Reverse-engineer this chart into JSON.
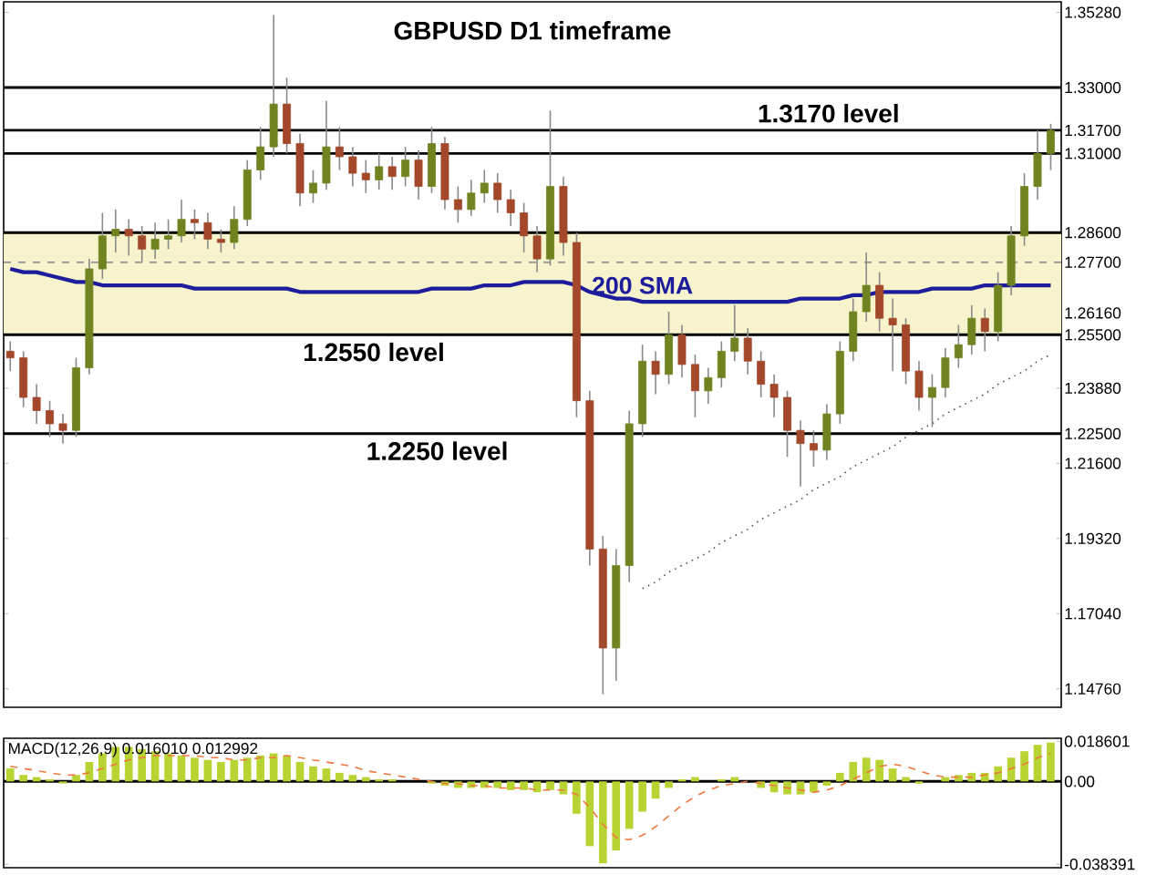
{
  "chart_data": [
    {
      "type": "candlestick",
      "title": "GBPUSD D1 timeframe",
      "categories": [
        null,
        null,
        null,
        null,
        null,
        null,
        null,
        null,
        null,
        null,
        null,
        null,
        null,
        null,
        null,
        null,
        null,
        null,
        null,
        null,
        null,
        null,
        null,
        null,
        null,
        null,
        null,
        null,
        null,
        null,
        null,
        null,
        null,
        null,
        null,
        null,
        null,
        null,
        null,
        null,
        null,
        null,
        null,
        null,
        null,
        null,
        null,
        null,
        null,
        null,
        null,
        null,
        null,
        null,
        null,
        null,
        null,
        null,
        null,
        null,
        null,
        null,
        null,
        null,
        null,
        null,
        null,
        null,
        null,
        null,
        null,
        null,
        null,
        null,
        null,
        null,
        null,
        null,
        null,
        null
      ],
      "ohlc": [
        [
          1.25,
          1.253,
          1.244,
          1.248
        ],
        [
          1.248,
          1.25,
          1.233,
          1.236
        ],
        [
          1.236,
          1.24,
          1.228,
          1.232
        ],
        [
          1.232,
          1.235,
          1.224,
          1.228
        ],
        [
          1.228,
          1.231,
          1.222,
          1.226
        ],
        [
          1.226,
          1.248,
          1.224,
          1.245
        ],
        [
          1.245,
          1.278,
          1.243,
          1.275
        ],
        [
          1.275,
          1.292,
          1.272,
          1.285
        ],
        [
          1.285,
          1.293,
          1.28,
          1.287
        ],
        [
          1.287,
          1.29,
          1.279,
          1.285
        ],
        [
          1.285,
          1.288,
          1.277,
          1.281
        ],
        [
          1.281,
          1.289,
          1.278,
          1.284
        ],
        [
          1.284,
          1.29,
          1.281,
          1.285
        ],
        [
          1.285,
          1.296,
          1.283,
          1.29
        ],
        [
          1.29,
          1.293,
          1.284,
          1.289
        ],
        [
          1.289,
          1.292,
          1.281,
          1.284
        ],
        [
          1.284,
          1.287,
          1.28,
          1.283
        ],
        [
          1.283,
          1.294,
          1.281,
          1.29
        ],
        [
          1.29,
          1.308,
          1.288,
          1.305
        ],
        [
          1.305,
          1.318,
          1.302,
          1.312
        ],
        [
          1.312,
          1.352,
          1.309,
          1.325
        ],
        [
          1.325,
          1.333,
          1.31,
          1.313
        ],
        [
          1.313,
          1.316,
          1.294,
          1.298
        ],
        [
          1.298,
          1.305,
          1.295,
          1.301
        ],
        [
          1.301,
          1.326,
          1.299,
          1.312
        ],
        [
          1.312,
          1.318,
          1.305,
          1.309
        ],
        [
          1.309,
          1.312,
          1.3,
          1.304
        ],
        [
          1.304,
          1.308,
          1.298,
          1.302
        ],
        [
          1.302,
          1.31,
          1.299,
          1.306
        ],
        [
          1.306,
          1.309,
          1.299,
          1.303
        ],
        [
          1.303,
          1.312,
          1.3,
          1.308
        ],
        [
          1.308,
          1.311,
          1.296,
          1.3
        ],
        [
          1.3,
          1.318,
          1.298,
          1.313
        ],
        [
          1.313,
          1.315,
          1.293,
          1.296
        ],
        [
          1.296,
          1.3,
          1.289,
          1.293
        ],
        [
          1.293,
          1.302,
          1.291,
          1.298
        ],
        [
          1.298,
          1.305,
          1.295,
          1.301
        ],
        [
          1.301,
          1.304,
          1.292,
          1.296
        ],
        [
          1.296,
          1.299,
          1.288,
          1.292
        ],
        [
          1.292,
          1.295,
          1.28,
          1.285
        ],
        [
          1.285,
          1.288,
          1.274,
          1.278
        ],
        [
          1.278,
          1.323,
          1.276,
          1.3
        ],
        [
          1.3,
          1.303,
          1.279,
          1.283
        ],
        [
          1.283,
          1.286,
          1.23,
          1.235
        ],
        [
          1.235,
          1.238,
          1.185,
          1.19
        ],
        [
          1.19,
          1.194,
          1.146,
          1.16
        ],
        [
          1.16,
          1.19,
          1.15,
          1.185
        ],
        [
          1.185,
          1.232,
          1.18,
          1.228
        ],
        [
          1.228,
          1.252,
          1.224,
          1.247
        ],
        [
          1.247,
          1.25,
          1.237,
          1.243
        ],
        [
          1.243,
          1.262,
          1.24,
          1.255
        ],
        [
          1.255,
          1.258,
          1.242,
          1.246
        ],
        [
          1.246,
          1.249,
          1.23,
          1.238
        ],
        [
          1.238,
          1.245,
          1.234,
          1.242
        ],
        [
          1.242,
          1.253,
          1.239,
          1.25
        ],
        [
          1.25,
          1.264,
          1.247,
          1.254
        ],
        [
          1.254,
          1.257,
          1.243,
          1.247
        ],
        [
          1.247,
          1.25,
          1.236,
          1.24
        ],
        [
          1.24,
          1.243,
          1.23,
          1.236
        ],
        [
          1.236,
          1.238,
          1.218,
          1.226
        ],
        [
          1.226,
          1.229,
          1.209,
          1.222
        ],
        [
          1.222,
          1.226,
          1.215,
          1.22
        ],
        [
          1.22,
          1.234,
          1.217,
          1.231
        ],
        [
          1.231,
          1.253,
          1.228,
          1.25
        ],
        [
          1.25,
          1.266,
          1.247,
          1.262
        ],
        [
          1.262,
          1.28,
          1.259,
          1.27
        ],
        [
          1.27,
          1.274,
          1.256,
          1.26
        ],
        [
          1.26,
          1.266,
          1.244,
          1.258
        ],
        [
          1.258,
          1.26,
          1.24,
          1.244
        ],
        [
          1.244,
          1.247,
          1.232,
          1.236
        ],
        [
          1.236,
          1.243,
          1.227,
          1.239
        ],
        [
          1.239,
          1.251,
          1.236,
          1.248
        ],
        [
          1.248,
          1.258,
          1.245,
          1.252
        ],
        [
          1.252,
          1.264,
          1.249,
          1.26
        ],
        [
          1.26,
          1.263,
          1.25,
          1.256
        ],
        [
          1.256,
          1.274,
          1.253,
          1.27
        ],
        [
          1.27,
          1.288,
          1.267,
          1.285
        ],
        [
          1.285,
          1.304,
          1.282,
          1.3
        ],
        [
          1.3,
          1.317,
          1.296,
          1.31
        ],
        [
          1.31,
          1.319,
          1.305,
          1.317
        ]
      ],
      "series": [
        {
          "name": "200 SMA",
          "type": "line",
          "color": "#1c1c9c",
          "values": [
            1.275,
            1.274,
            1.274,
            1.273,
            1.272,
            1.271,
            1.271,
            1.27,
            1.27,
            1.27,
            1.27,
            1.27,
            1.27,
            1.27,
            1.269,
            1.269,
            1.269,
            1.269,
            1.269,
            1.269,
            1.269,
            1.269,
            1.268,
            1.268,
            1.268,
            1.268,
            1.268,
            1.268,
            1.268,
            1.268,
            1.268,
            1.268,
            1.269,
            1.269,
            1.269,
            1.269,
            1.27,
            1.27,
            1.27,
            1.271,
            1.271,
            1.271,
            1.271,
            1.27,
            1.268,
            1.267,
            1.266,
            1.266,
            1.265,
            1.265,
            1.265,
            1.265,
            1.265,
            1.265,
            1.265,
            1.265,
            1.265,
            1.265,
            1.265,
            1.265,
            1.266,
            1.266,
            1.266,
            1.266,
            1.267,
            1.267,
            1.268,
            1.268,
            1.268,
            1.268,
            1.269,
            1.269,
            1.269,
            1.269,
            1.27,
            1.27,
            1.27,
            1.27,
            1.27,
            1.27
          ]
        },
        {
          "type": "line",
          "line_style": "dotted",
          "color": "#555555",
          "values": [
            null,
            null,
            null,
            null,
            null,
            null,
            null,
            null,
            null,
            null,
            null,
            null,
            null,
            null,
            null,
            null,
            null,
            null,
            null,
            null,
            null,
            null,
            null,
            null,
            null,
            null,
            null,
            null,
            null,
            null,
            null,
            null,
            null,
            null,
            null,
            null,
            null,
            null,
            null,
            null,
            null,
            null,
            null,
            null,
            null,
            null,
            null,
            null,
            1.178,
            1.18,
            1.183,
            1.185,
            1.187,
            1.189,
            1.192,
            1.194,
            1.196,
            1.199,
            1.201,
            1.203,
            1.205,
            1.208,
            1.21,
            1.212,
            1.215,
            1.217,
            1.219,
            1.221,
            1.224,
            1.226,
            1.228,
            1.231,
            1.233,
            1.235,
            1.237,
            1.24,
            1.242,
            1.244,
            1.247,
            1.249
          ]
        }
      ],
      "ylim": [
        1.142,
        1.356
      ],
      "yticks": [
        {
          "value": 1.3528,
          "label": "1.35280"
        },
        {
          "value": 1.33,
          "label": "1.33000"
        },
        {
          "value": 1.317,
          "label": "1.31700"
        },
        {
          "value": 1.31,
          "label": "1.31000"
        },
        {
          "value": 1.286,
          "label": "1.28600"
        },
        {
          "value": 1.277,
          "label": "1.27700"
        },
        {
          "value": 1.2616,
          "label": "1.26160"
        },
        {
          "value": 1.255,
          "label": "1.25500"
        },
        {
          "value": 1.2388,
          "label": "1.23880"
        },
        {
          "value": 1.225,
          "label": "1.22500"
        },
        {
          "value": 1.216,
          "label": "1.21600"
        },
        {
          "value": 1.1932,
          "label": "1.19320"
        },
        {
          "value": 1.1704,
          "label": "1.17040"
        },
        {
          "value": 1.1476,
          "label": "1.14760"
        }
      ],
      "ref_lines": [
        {
          "axis": "y",
          "value": 1.33,
          "color": "#000000"
        },
        {
          "axis": "y",
          "value": 1.317,
          "label": "1.3170 level",
          "color": "#000000"
        },
        {
          "axis": "y",
          "value": 1.31,
          "color": "#000000"
        },
        {
          "axis": "y",
          "value": 1.286,
          "color": "#000000"
        },
        {
          "axis": "y",
          "value": 1.277,
          "color": "#999999",
          "line_style": "dashed"
        },
        {
          "axis": "y",
          "value": 1.255,
          "label": "1.2550 level",
          "color": "#000000"
        },
        {
          "axis": "y",
          "value": 1.225,
          "label": "1.2250 level",
          "color": "#000000"
        }
      ],
      "bands": [
        {
          "axis": "y",
          "from": 1.255,
          "to": 1.286,
          "color": "#f7f3cc"
        }
      ],
      "tick_labels": "y"
    },
    {
      "type": "bar",
      "title": "MACD(12,26,9) 0.016010 0.012992",
      "categories": [
        null,
        null,
        null,
        null,
        null,
        null,
        null,
        null,
        null,
        null,
        null,
        null,
        null,
        null,
        null,
        null,
        null,
        null,
        null,
        null,
        null,
        null,
        null,
        null,
        null,
        null,
        null,
        null,
        null,
        null,
        null,
        null,
        null,
        null,
        null,
        null,
        null,
        null,
        null,
        null,
        null,
        null,
        null,
        null,
        null,
        null,
        null,
        null,
        null,
        null,
        null,
        null,
        null,
        null,
        null,
        null,
        null,
        null,
        null,
        null,
        null,
        null,
        null,
        null,
        null,
        null,
        null,
        null,
        null,
        null,
        null,
        null,
        null,
        null,
        null,
        null,
        null,
        null,
        null,
        null
      ],
      "series": [
        {
          "color": "#b8d432",
          "values": [
            0.006,
            0.003,
            0.002,
            0.001,
            -0.001,
            0.003,
            0.009,
            0.013,
            0.016,
            0.016,
            0.015,
            0.014,
            0.013,
            0.012,
            0.011,
            0.01,
            0.009,
            0.01,
            0.011,
            0.012,
            0.013,
            0.012,
            0.009,
            0.007,
            0.006,
            0.004,
            0.003,
            0.002,
            0.001,
            0.001,
            0.0,
            0.0,
            -0.001,
            -0.002,
            -0.003,
            -0.003,
            -0.003,
            -0.003,
            -0.004,
            -0.004,
            -0.005,
            -0.004,
            -0.006,
            -0.015,
            -0.03,
            -0.038,
            -0.032,
            -0.022,
            -0.014,
            -0.008,
            -0.003,
            0.001,
            0.002,
            0.0,
            0.001,
            0.002,
            0.0,
            -0.003,
            -0.005,
            -0.006,
            -0.006,
            -0.005,
            -0.002,
            0.004,
            0.009,
            0.011,
            0.01,
            0.006,
            0.002,
            -0.001,
            0.0,
            0.002,
            0.003,
            0.004,
            0.004,
            0.007,
            0.011,
            0.014,
            0.017,
            0.018
          ]
        },
        {
          "type": "line",
          "line_style": "dashed",
          "color": "#f07840",
          "values": [
            0.007,
            0.006,
            0.005,
            0.004,
            0.003,
            0.003,
            0.004,
            0.006,
            0.008,
            0.01,
            0.011,
            0.012,
            0.012,
            0.012,
            0.012,
            0.011,
            0.011,
            0.01,
            0.01,
            0.011,
            0.011,
            0.012,
            0.011,
            0.01,
            0.009,
            0.008,
            0.007,
            0.005,
            0.004,
            0.003,
            0.002,
            0.001,
            0.0,
            -0.001,
            -0.001,
            -0.002,
            -0.002,
            -0.003,
            -0.003,
            -0.003,
            -0.004,
            -0.004,
            -0.004,
            -0.006,
            -0.012,
            -0.02,
            -0.026,
            -0.027,
            -0.025,
            -0.021,
            -0.016,
            -0.011,
            -0.007,
            -0.004,
            -0.002,
            -0.001,
            0.0,
            -0.001,
            -0.002,
            -0.003,
            -0.004,
            -0.005,
            -0.004,
            -0.002,
            0.001,
            0.004,
            0.007,
            0.008,
            0.007,
            0.005,
            0.003,
            0.002,
            0.002,
            0.002,
            0.003,
            0.004,
            0.006,
            0.008,
            0.011,
            0.013
          ]
        }
      ],
      "ylim": [
        -0.04,
        0.02
      ],
      "yticks": [
        0.018601,
        {
          "value": 0,
          "label": "0.00"
        },
        -0.038391
      ],
      "ref_lines": [
        {
          "axis": "y",
          "value": 0,
          "color": "#000000"
        }
      ],
      "tick_labels": "y"
    }
  ]
}
